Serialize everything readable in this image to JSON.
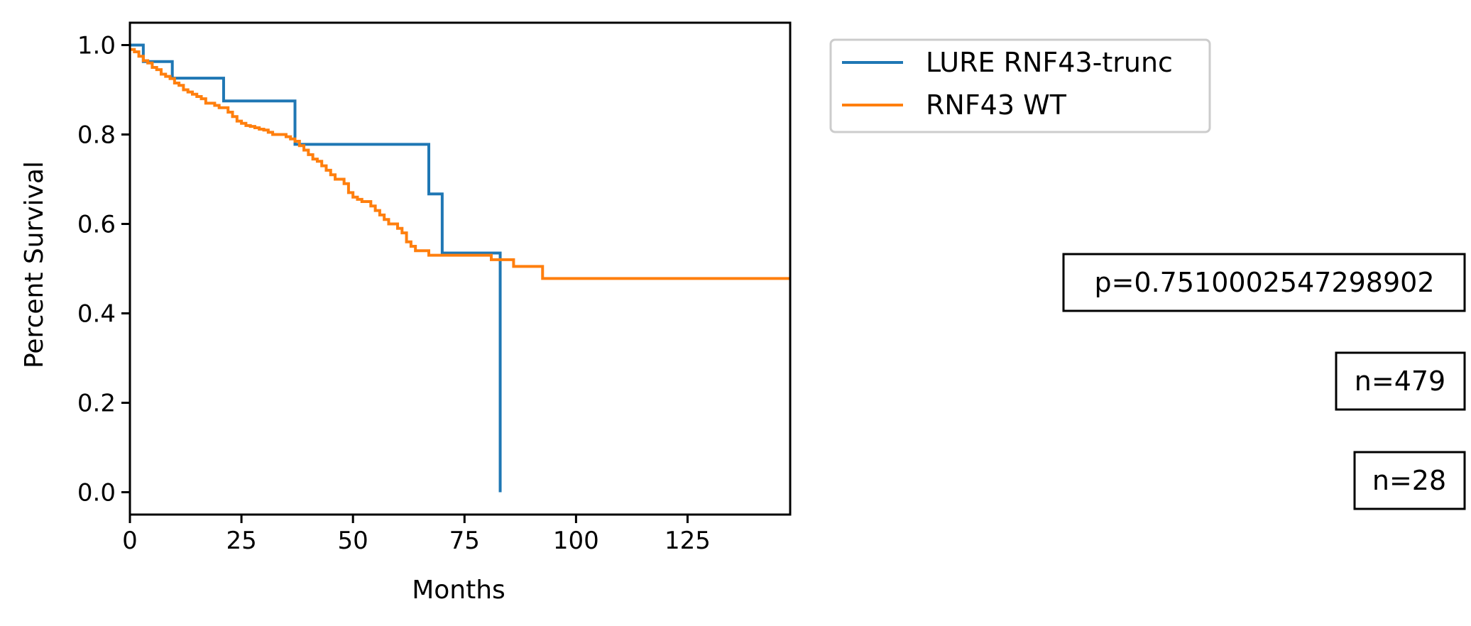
{
  "chart_data": {
    "type": "line",
    "step": true,
    "xlabel": "Months",
    "ylabel": "Percent Survival",
    "xlim": [
      0,
      148
    ],
    "ylim": [
      -0.05,
      1.05
    ],
    "xticks": [
      0,
      25,
      50,
      75,
      100,
      125
    ],
    "yticks": [
      0.0,
      0.2,
      0.4,
      0.6,
      0.8,
      1.0
    ],
    "xtick_labels": [
      "0",
      "25",
      "50",
      "75",
      "100",
      "125"
    ],
    "ytick_labels": [
      "0.0",
      "0.2",
      "0.4",
      "0.6",
      "0.8",
      "1.0"
    ],
    "grid": false,
    "legend_position": "outside-top-right",
    "series": [
      {
        "name": "LURE RNF43-trunc",
        "color": "#1f77b4",
        "x": [
          0,
          3,
          9.5,
          21,
          37,
          67,
          70,
          83,
          83
        ],
        "y": [
          1.0,
          0.963,
          0.926,
          0.875,
          0.778,
          0.667,
          0.535,
          0.535,
          0.0
        ]
      },
      {
        "name": "RNF43 WT",
        "color": "#ff7f0e",
        "x": [
          0,
          1,
          2,
          3,
          4,
          5,
          6,
          7,
          8,
          9,
          10,
          11,
          12,
          13,
          14,
          15,
          16,
          17,
          18,
          19,
          20,
          21,
          22,
          23,
          24,
          25,
          26,
          27,
          28,
          29,
          30,
          31,
          32,
          33,
          34,
          35,
          36,
          37,
          38,
          39,
          40,
          41,
          42,
          43,
          44,
          45,
          46,
          47,
          48,
          49,
          50,
          51,
          52,
          53,
          54,
          55,
          56,
          57,
          58,
          59,
          60,
          61,
          62,
          63,
          64,
          65,
          67,
          71,
          77,
          81,
          86,
          92.5,
          148
        ],
        "y": [
          0.99,
          0.985,
          0.975,
          0.965,
          0.96,
          0.95,
          0.945,
          0.935,
          0.93,
          0.925,
          0.915,
          0.91,
          0.9,
          0.895,
          0.89,
          0.885,
          0.88,
          0.87,
          0.87,
          0.865,
          0.86,
          0.86,
          0.85,
          0.84,
          0.83,
          0.825,
          0.82,
          0.818,
          0.815,
          0.812,
          0.81,
          0.805,
          0.8,
          0.8,
          0.8,
          0.795,
          0.79,
          0.785,
          0.775,
          0.765,
          0.755,
          0.745,
          0.74,
          0.73,
          0.72,
          0.71,
          0.7,
          0.7,
          0.69,
          0.67,
          0.66,
          0.655,
          0.65,
          0.65,
          0.64,
          0.63,
          0.62,
          0.61,
          0.6,
          0.6,
          0.59,
          0.58,
          0.56,
          0.55,
          0.54,
          0.54,
          0.53,
          0.53,
          0.53,
          0.52,
          0.505,
          0.478,
          0.478
        ]
      }
    ],
    "annotations": [
      "p=0.7510002547298902",
      "n=479",
      "n=28"
    ]
  }
}
